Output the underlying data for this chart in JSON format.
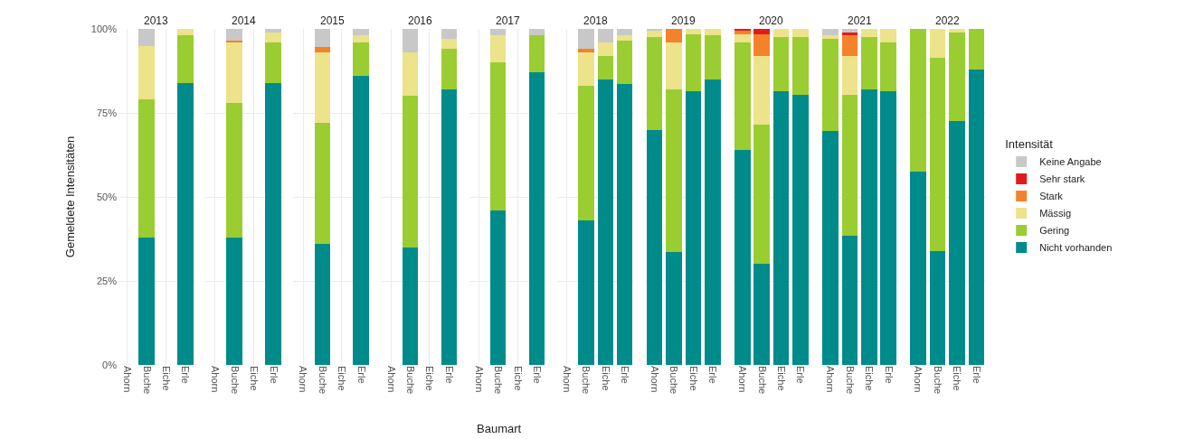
{
  "chart_data": [
    {
      "type": "bar",
      "title": "2013",
      "ylabel": "Gemeldete Intensitäten",
      "stacked": true,
      "grid": true,
      "categories": [
        "Ahorn",
        "Buche",
        "Eiche",
        "Erle"
      ],
      "ylim": [
        0,
        100
      ],
      "yticks": [
        {
          "value": 0,
          "label": "0%"
        },
        {
          "value": 25,
          "label": "25%"
        },
        {
          "value": 50,
          "label": "50%"
        },
        {
          "value": 75,
          "label": "75%"
        },
        {
          "value": 100,
          "label": "100%"
        }
      ],
      "series": [
        {
          "color": "#008b8b",
          "values": [
            null,
            38,
            null,
            84
          ]
        },
        {
          "color": "#9acd32",
          "values": [
            null,
            41,
            null,
            14
          ]
        },
        {
          "color": "#ece38a",
          "values": [
            null,
            16,
            null,
            2
          ]
        },
        {
          "color": "#f5822a",
          "values": [
            null,
            null,
            null,
            null
          ]
        },
        {
          "color": "#e31a1c",
          "values": [
            null,
            null,
            null,
            null
          ]
        },
        {
          "color": "#c8c8c8",
          "values": [
            null,
            5,
            null,
            null
          ]
        }
      ]
    },
    {
      "type": "bar",
      "title": "2014",
      "stacked": true,
      "grid": true,
      "tick_labels": "x",
      "categories": [
        "Ahorn",
        "Buche",
        "Eiche",
        "Erle"
      ],
      "ylim": [
        0,
        100
      ],
      "series": [
        {
          "color": "#008b8b",
          "values": [
            null,
            38,
            null,
            84
          ]
        },
        {
          "color": "#9acd32",
          "values": [
            null,
            40,
            null,
            12
          ]
        },
        {
          "color": "#ece38a",
          "values": [
            null,
            18,
            null,
            3
          ]
        },
        {
          "color": "#f5822a",
          "values": [
            null,
            0.5,
            null,
            null
          ]
        },
        {
          "color": "#e31a1c",
          "values": [
            null,
            null,
            null,
            null
          ]
        },
        {
          "color": "#c8c8c8",
          "values": [
            null,
            3.5,
            null,
            1
          ]
        }
      ]
    },
    {
      "type": "bar",
      "title": "2015",
      "stacked": true,
      "grid": true,
      "tick_labels": "x",
      "categories": [
        "Ahorn",
        "Buche",
        "Eiche",
        "Erle"
      ],
      "ylim": [
        0,
        100
      ],
      "series": [
        {
          "color": "#008b8b",
          "values": [
            null,
            36,
            null,
            86
          ]
        },
        {
          "color": "#9acd32",
          "values": [
            null,
            36,
            null,
            10
          ]
        },
        {
          "color": "#ece38a",
          "values": [
            null,
            21,
            null,
            2
          ]
        },
        {
          "color": "#f5822a",
          "values": [
            null,
            1.5,
            null,
            null
          ]
        },
        {
          "color": "#e31a1c",
          "values": [
            null,
            null,
            null,
            null
          ]
        },
        {
          "color": "#c8c8c8",
          "values": [
            null,
            5.5,
            null,
            2
          ]
        }
      ]
    },
    {
      "type": "bar",
      "title": "2016",
      "stacked": true,
      "grid": true,
      "tick_labels": "x",
      "categories": [
        "Ahorn",
        "Buche",
        "Eiche",
        "Erle"
      ],
      "ylim": [
        0,
        100
      ],
      "series": [
        {
          "color": "#008b8b",
          "values": [
            null,
            35,
            null,
            82
          ]
        },
        {
          "color": "#9acd32",
          "values": [
            null,
            45,
            null,
            12
          ]
        },
        {
          "color": "#ece38a",
          "values": [
            null,
            13,
            null,
            3
          ]
        },
        {
          "color": "#f5822a",
          "values": [
            null,
            null,
            null,
            null
          ]
        },
        {
          "color": "#e31a1c",
          "values": [
            null,
            null,
            null,
            null
          ]
        },
        {
          "color": "#c8c8c8",
          "values": [
            null,
            7,
            null,
            3
          ]
        }
      ]
    },
    {
      "type": "bar",
      "title": "2017",
      "xlabel": "Baumart",
      "stacked": true,
      "grid": true,
      "tick_labels": "x",
      "categories": [
        "Ahorn",
        "Buche",
        "Eiche",
        "Erle"
      ],
      "ylim": [
        0,
        100
      ],
      "series": [
        {
          "color": "#008b8b",
          "values": [
            null,
            46,
            null,
            87
          ]
        },
        {
          "color": "#9acd32",
          "values": [
            null,
            44,
            null,
            11
          ]
        },
        {
          "color": "#ece38a",
          "values": [
            null,
            8,
            null,
            null
          ]
        },
        {
          "color": "#f5822a",
          "values": [
            null,
            null,
            null,
            null
          ]
        },
        {
          "color": "#e31a1c",
          "values": [
            null,
            null,
            null,
            null
          ]
        },
        {
          "color": "#c8c8c8",
          "values": [
            null,
            2,
            null,
            2
          ]
        }
      ]
    },
    {
      "type": "bar",
      "title": "2018",
      "stacked": true,
      "grid": true,
      "tick_labels": "x",
      "categories": [
        "Ahorn",
        "Buche",
        "Eiche",
        "Erle"
      ],
      "ylim": [
        0,
        100
      ],
      "series": [
        {
          "color": "#008b8b",
          "values": [
            null,
            43,
            85,
            83.5
          ]
        },
        {
          "color": "#9acd32",
          "values": [
            null,
            40,
            7,
            13
          ]
        },
        {
          "color": "#ece38a",
          "values": [
            null,
            10,
            4,
            1.5
          ]
        },
        {
          "color": "#f5822a",
          "values": [
            null,
            1,
            null,
            null
          ]
        },
        {
          "color": "#e31a1c",
          "values": [
            null,
            null,
            null,
            null
          ]
        },
        {
          "color": "#c8c8c8",
          "values": [
            null,
            6,
            4,
            2
          ]
        }
      ]
    },
    {
      "type": "bar",
      "title": "2019",
      "stacked": true,
      "grid": true,
      "tick_labels": "x",
      "categories": [
        "Ahorn",
        "Buche",
        "Eiche",
        "Erle"
      ],
      "ylim": [
        0,
        100
      ],
      "series": [
        {
          "color": "#008b8b",
          "values": [
            70,
            33.5,
            81.5,
            85
          ]
        },
        {
          "color": "#9acd32",
          "values": [
            27.5,
            48.5,
            17,
            13
          ]
        },
        {
          "color": "#ece38a",
          "values": [
            2,
            14,
            1.5,
            2
          ]
        },
        {
          "color": "#f5822a",
          "values": [
            null,
            4,
            null,
            null
          ]
        },
        {
          "color": "#e31a1c",
          "values": [
            null,
            null,
            null,
            null
          ]
        },
        {
          "color": "#c8c8c8",
          "values": [
            0.5,
            null,
            null,
            null
          ]
        }
      ]
    },
    {
      "type": "bar",
      "title": "2020",
      "stacked": true,
      "grid": true,
      "tick_labels": "x",
      "categories": [
        "Ahorn",
        "Buche",
        "Eiche",
        "Erle"
      ],
      "ylim": [
        0,
        100
      ],
      "series": [
        {
          "color": "#008b8b",
          "values": [
            64,
            30,
            81.5,
            80.5
          ]
        },
        {
          "color": "#9acd32",
          "values": [
            32,
            41.5,
            16,
            17
          ]
        },
        {
          "color": "#ece38a",
          "values": [
            2.5,
            20.5,
            2.5,
            2.5
          ]
        },
        {
          "color": "#f5822a",
          "values": [
            1,
            6.5,
            null,
            null
          ]
        },
        {
          "color": "#e31a1c",
          "values": [
            0.5,
            1.5,
            null,
            null
          ]
        },
        {
          "color": "#c8c8c8",
          "values": [
            null,
            null,
            null,
            null
          ]
        }
      ]
    },
    {
      "type": "bar",
      "title": "2021",
      "legend_title": "Intensität",
      "legend": "right",
      "stacked": true,
      "grid": true,
      "tick_labels": "x",
      "categories": [
        "Ahorn",
        "Buche",
        "Eiche",
        "Erle"
      ],
      "ylim": [
        0,
        100
      ],
      "series": [
        {
          "name": "Nicht vorhanden",
          "color": "#008b8b",
          "values": [
            69.5,
            38.5,
            82,
            81.5
          ]
        },
        {
          "name": "Gering",
          "color": "#9acd32",
          "values": [
            27.5,
            42,
            15.5,
            14.5
          ]
        },
        {
          "name": "Mässig",
          "color": "#ece38a",
          "values": [
            1,
            11.5,
            2.5,
            4
          ]
        },
        {
          "name": "Stark",
          "color": "#f5822a",
          "values": [
            null,
            6,
            null,
            null
          ]
        },
        {
          "name": "Sehr stark",
          "color": "#e31a1c",
          "values": [
            null,
            1,
            null,
            null
          ]
        },
        {
          "name": "Keine Angabe",
          "color": "#c8c8c8",
          "values": [
            2,
            1,
            null,
            null
          ]
        }
      ]
    },
    {
      "type": "bar",
      "title": "2022",
      "stacked": true,
      "grid": true,
      "tick_labels": "x",
      "categories": [
        "Ahorn",
        "Buche",
        "Eiche",
        "Erle"
      ],
      "ylim": [
        0,
        100
      ],
      "series": [
        {
          "color": "#008b8b",
          "values": [
            57.5,
            34,
            72.5,
            88
          ]
        },
        {
          "color": "#9acd32",
          "values": [
            42.5,
            57.5,
            26.5,
            12
          ]
        },
        {
          "color": "#ece38a",
          "values": [
            null,
            8.5,
            1,
            null
          ]
        },
        {
          "color": "#f5822a",
          "values": [
            null,
            null,
            null,
            null
          ]
        },
        {
          "color": "#e31a1c",
          "values": [
            null,
            null,
            null,
            null
          ]
        },
        {
          "color": "#c8c8c8",
          "values": [
            null,
            null,
            null,
            null
          ]
        }
      ]
    }
  ]
}
